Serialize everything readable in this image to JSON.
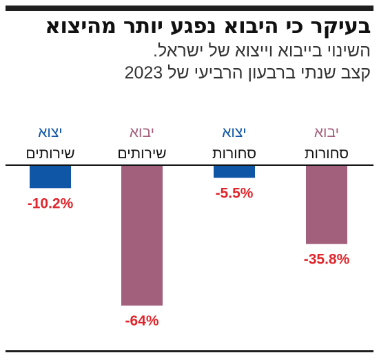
{
  "title": "בעיקר כי היבוא נפגע יותר מהיצוא",
  "subtitle": "השינוי בייבוא וייצוא של ישראל.",
  "subtitle2": "קצב שנתי ברבעון הרביעי של 2023",
  "colors": {
    "import": "#a3607c",
    "export": "#0f57a6",
    "negative_label": "#e0252b",
    "axis": "#111111"
  },
  "chart_data": {
    "type": "bar",
    "title": "",
    "xlabel": "",
    "ylabel": "",
    "ylim": [
      -70,
      0
    ],
    "grid": false,
    "categories": [
      {
        "top": "יבוא",
        "bottom": "סחורות",
        "series": "import",
        "value": -35.8,
        "label": "-35.8%"
      },
      {
        "top": "יצוא",
        "bottom": "סחורות",
        "series": "export",
        "value": -5.5,
        "label": "-5.5%"
      },
      {
        "top": "יבוא",
        "bottom": "שירותים",
        "series": "import",
        "value": -64,
        "label": "-64%"
      },
      {
        "top": "יצוא",
        "bottom": "שירותים",
        "series": "export",
        "value": -10.2,
        "label": "-10.2%"
      }
    ]
  }
}
